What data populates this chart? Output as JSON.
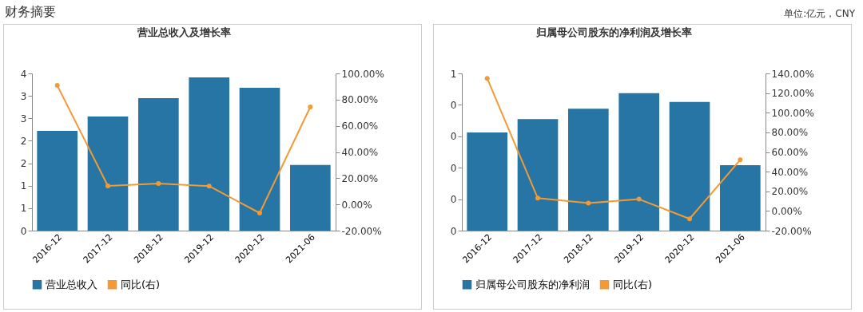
{
  "chart_data": [
    {
      "type": "bar",
      "title": "营业总收入及增长率",
      "annotations": [
        "财务摘要",
        "单位:亿元，CNY"
      ],
      "categories": [
        "2016-12",
        "2017-12",
        "2018-12",
        "2019-12",
        "2020-12",
        "2021-06"
      ],
      "series": [
        {
          "name": "营业总收入",
          "color": "#2675a4",
          "values": [
            2.22,
            2.54,
            2.95,
            3.41,
            3.18,
            1.46
          ]
        },
        {
          "name": "同比(右)",
          "type": "line",
          "axis": "y2",
          "color": "#f29a36",
          "values": [
            90.8,
            14.1,
            16.0,
            14.0,
            -6.6,
            74.4
          ]
        }
      ],
      "ylim": [
        0,
        3.5
      ],
      "yticks": [
        {
          "value": 0,
          "label": "0"
        },
        {
          "value": 0.5,
          "label": "1"
        },
        {
          "value": 1,
          "label": "1"
        },
        {
          "value": 1.5,
          "label": "2"
        },
        {
          "value": 2,
          "label": "2"
        },
        {
          "value": 2.5,
          "label": "3"
        },
        {
          "value": 3,
          "label": "3"
        },
        {
          "value": 3.5,
          "label": "4"
        }
      ],
      "y2lim": [
        -20,
        100
      ],
      "y2ticks": [
        {
          "value": -20,
          "label": "-20.00%"
        },
        {
          "value": 0,
          "label": "0.00%"
        },
        {
          "value": 20,
          "label": "20.00%"
        },
        {
          "value": 40,
          "label": "40.00%"
        },
        {
          "value": 60,
          "label": "60.00%"
        },
        {
          "value": 80,
          "label": "80.00%"
        },
        {
          "value": 100,
          "label": "100.00%"
        }
      ],
      "legend": "bottom",
      "marker": "circle",
      "grid": false
    },
    {
      "type": "bar",
      "title": "归属母公司股东的净利润及增长率",
      "categories": [
        "2016-12",
        "2017-12",
        "2018-12",
        "2019-12",
        "2020-12",
        "2021-06"
      ],
      "series": [
        {
          "name": "归属母公司股东的净利润",
          "color": "#2675a4",
          "values": [
            0.312,
            0.355,
            0.388,
            0.437,
            0.409,
            0.208
          ]
        },
        {
          "name": "同比(右)",
          "type": "line",
          "axis": "y2",
          "color": "#f29a36",
          "values": [
            135,
            13,
            8,
            12,
            -8,
            52
          ]
        }
      ],
      "ylim": [
        0,
        0.5
      ],
      "yticks": [
        {
          "value": 0,
          "label": "0"
        },
        {
          "value": 0.1,
          "label": "0"
        },
        {
          "value": 0.2,
          "label": "0"
        },
        {
          "value": 0.3,
          "label": "0"
        },
        {
          "value": 0.4,
          "label": "0"
        },
        {
          "value": 0.5,
          "label": "1"
        }
      ],
      "y2lim": [
        -20,
        140
      ],
      "y2ticks": [
        {
          "value": -20,
          "label": "-20.00%"
        },
        {
          "value": 0,
          "label": "0.00%"
        },
        {
          "value": 20,
          "label": "20.00%"
        },
        {
          "value": 40,
          "label": "40.00%"
        },
        {
          "value": 60,
          "label": "60.00%"
        },
        {
          "value": 80,
          "label": "80.00%"
        },
        {
          "value": 100,
          "label": "100.00%"
        },
        {
          "value": 120,
          "label": "120.00%"
        },
        {
          "value": 140,
          "label": "140.00%"
        }
      ],
      "legend": "bottom",
      "marker": "circle",
      "grid": false
    }
  ]
}
